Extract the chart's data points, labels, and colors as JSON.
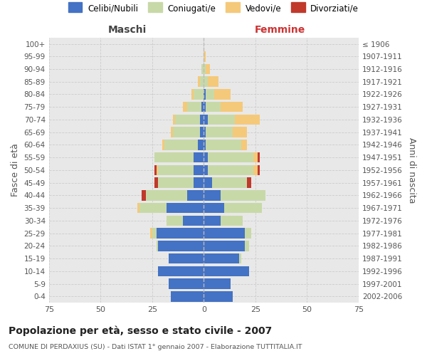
{
  "age_groups": [
    "0-4",
    "5-9",
    "10-14",
    "15-19",
    "20-24",
    "25-29",
    "30-34",
    "35-39",
    "40-44",
    "45-49",
    "50-54",
    "55-59",
    "60-64",
    "65-69",
    "70-74",
    "75-79",
    "80-84",
    "85-89",
    "90-94",
    "95-99",
    "100+"
  ],
  "birth_years": [
    "2002-2006",
    "1997-2001",
    "1992-1996",
    "1987-1991",
    "1982-1986",
    "1977-1981",
    "1972-1976",
    "1967-1971",
    "1962-1966",
    "1957-1961",
    "1952-1956",
    "1947-1951",
    "1942-1946",
    "1937-1941",
    "1932-1936",
    "1927-1931",
    "1922-1926",
    "1917-1921",
    "1912-1916",
    "1907-1911",
    "≤ 1906"
  ],
  "males": {
    "celibi": [
      16,
      17,
      22,
      17,
      22,
      23,
      10,
      18,
      8,
      5,
      5,
      5,
      3,
      2,
      2,
      1,
      0,
      0,
      0,
      0,
      0
    ],
    "coniugati": [
      0,
      0,
      0,
      0,
      1,
      2,
      8,
      13,
      20,
      17,
      17,
      19,
      16,
      13,
      12,
      7,
      5,
      2,
      1,
      0,
      0
    ],
    "vedovi": [
      0,
      0,
      0,
      0,
      0,
      1,
      0,
      1,
      0,
      0,
      1,
      0,
      1,
      1,
      1,
      2,
      1,
      1,
      0,
      0,
      0
    ],
    "divorziati": [
      0,
      0,
      0,
      0,
      0,
      0,
      0,
      0,
      2,
      2,
      1,
      0,
      0,
      0,
      0,
      0,
      0,
      0,
      0,
      0,
      0
    ]
  },
  "females": {
    "nubili": [
      14,
      13,
      22,
      17,
      20,
      20,
      8,
      10,
      8,
      4,
      2,
      2,
      1,
      1,
      2,
      1,
      1,
      0,
      0,
      0,
      0
    ],
    "coniugate": [
      0,
      0,
      0,
      1,
      2,
      3,
      11,
      18,
      22,
      17,
      22,
      22,
      17,
      13,
      13,
      7,
      4,
      2,
      1,
      0,
      0
    ],
    "vedove": [
      0,
      0,
      0,
      0,
      0,
      0,
      0,
      0,
      0,
      0,
      2,
      2,
      3,
      7,
      12,
      11,
      8,
      5,
      2,
      1,
      0
    ],
    "divorziate": [
      0,
      0,
      0,
      0,
      0,
      0,
      0,
      0,
      0,
      2,
      1,
      1,
      0,
      0,
      0,
      0,
      0,
      0,
      0,
      0,
      0
    ]
  },
  "colors": {
    "celibi": "#4472C4",
    "coniugati": "#c8d9a8",
    "vedovi": "#f5c97a",
    "divorziati": "#c0392b"
  },
  "xlim": 75,
  "title": "Popolazione per età, sesso e stato civile - 2007",
  "subtitle": "COMUNE DI PERDAXIUS (SU) - Dati ISTAT 1° gennaio 2007 - Elaborazione TUTTITALIA.IT",
  "ylabel_left": "Fasce di età",
  "ylabel_right": "Anni di nascita",
  "xlabel_left": "Maschi",
  "xlabel_right": "Femmine",
  "background_color": "#ffffff",
  "plot_bg_color": "#e8e8e8",
  "grid_color": "#cccccc",
  "legend_labels": [
    "Celibi/Nubili",
    "Coniugati/e",
    "Vedovi/e",
    "Divorziati/e"
  ]
}
